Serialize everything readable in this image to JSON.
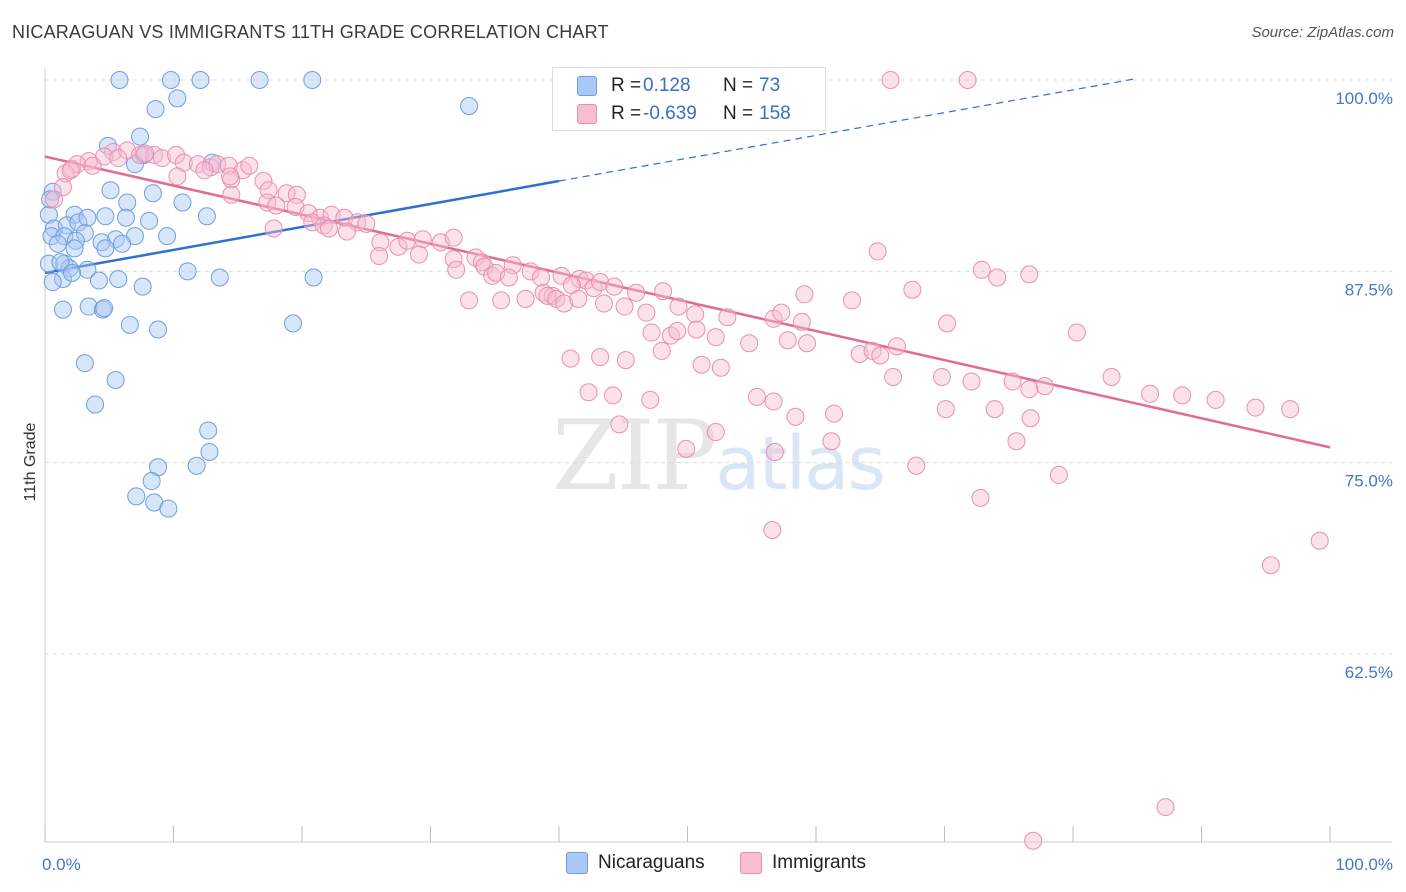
{
  "title": "NICARAGUAN VS IMMIGRANTS 11TH GRADE CORRELATION CHART",
  "source": "Source: ZipAtlas.com",
  "watermark": {
    "zip": "ZIP",
    "atlas": "atlas"
  },
  "legend": {
    "rows": [
      {
        "r_label": "R =",
        "r_value": "0.128",
        "n_label": "N =",
        "n_value": "73",
        "color": "#a9c8f5",
        "border": "#6f9ee0"
      },
      {
        "r_label": "R =",
        "r_value": "-0.639",
        "n_label": "N =",
        "n_value": "158",
        "color": "#f7bdd1",
        "border": "#ea8fb0"
      }
    ]
  },
  "bottom_legend": [
    {
      "label": "Nicaraguans",
      "color": "#a9c8f5",
      "border": "#6f9ee0"
    },
    {
      "label": "Immigrants",
      "color": "#f7bdd1",
      "border": "#ea8fb0"
    }
  ],
  "chart_data": {
    "type": "scatter",
    "title": "NICARAGUAN VS IMMIGRANTS 11TH GRADE CORRELATION CHART",
    "xlabel": "",
    "ylabel": "11th Grade",
    "xlim": [
      0,
      100
    ],
    "ylim": [
      50,
      101
    ],
    "x_tick_labels": [
      "0.0%",
      "100.0%"
    ],
    "y_ticks": [
      {
        "value": 100,
        "label": "100.0%"
      },
      {
        "value": 87.5,
        "label": "87.5%"
      },
      {
        "value": 75,
        "label": "75.0%"
      },
      {
        "value": 62.5,
        "label": "62.5%"
      }
    ],
    "series": [
      {
        "name": "Nicaraguans",
        "color": "#a9c8f5",
        "stroke": "#6f9ee0",
        "trend": {
          "x0": 0,
          "y0": 87.4,
          "x1": 40,
          "y1": 93.4,
          "dash_to_x": 85,
          "dash_to_y": 100.1,
          "color": "#2f6fd0"
        },
        "points": [
          [
            5.8,
            100
          ],
          [
            9.8,
            100
          ],
          [
            12.1,
            100
          ],
          [
            16.7,
            100
          ],
          [
            20.8,
            100
          ],
          [
            33,
            98.3
          ],
          [
            8.6,
            98.1
          ],
          [
            10.3,
            98.8
          ],
          [
            7.4,
            96.3
          ],
          [
            4.9,
            95.7
          ],
          [
            7.7,
            95.1
          ],
          [
            7,
            94.5
          ],
          [
            13,
            94.6
          ],
          [
            0.6,
            92.7
          ],
          [
            5.1,
            92.8
          ],
          [
            8.4,
            92.6
          ],
          [
            2.3,
            91.2
          ],
          [
            10.7,
            92
          ],
          [
            6.4,
            92
          ],
          [
            0.3,
            91.2
          ],
          [
            0.7,
            90.3
          ],
          [
            1.7,
            90.5
          ],
          [
            4.7,
            91.1
          ],
          [
            2.6,
            90.7
          ],
          [
            3.3,
            91
          ],
          [
            6.3,
            91
          ],
          [
            8.1,
            90.8
          ],
          [
            12.6,
            91.1
          ],
          [
            0.5,
            89.8
          ],
          [
            1.5,
            89.8
          ],
          [
            3.1,
            90
          ],
          [
            5.5,
            89.6
          ],
          [
            7,
            89.8
          ],
          [
            9.5,
            89.8
          ],
          [
            1,
            89.3
          ],
          [
            2.4,
            89.5
          ],
          [
            4.4,
            89.4
          ],
          [
            6,
            89.3
          ],
          [
            2.3,
            89
          ],
          [
            4.7,
            89
          ],
          [
            0.3,
            88
          ],
          [
            1.5,
            88
          ],
          [
            1.9,
            87.7
          ],
          [
            3.3,
            87.6
          ],
          [
            11.1,
            87.5
          ],
          [
            13.6,
            87.1
          ],
          [
            20.9,
            87.1
          ],
          [
            1.4,
            87
          ],
          [
            5.7,
            87
          ],
          [
            7.6,
            86.5
          ],
          [
            1.4,
            85
          ],
          [
            3.4,
            85.2
          ],
          [
            4.5,
            85
          ],
          [
            4.6,
            85.1
          ],
          [
            6.6,
            84
          ],
          [
            8.8,
            83.7
          ],
          [
            19.3,
            84.1
          ],
          [
            3.1,
            81.5
          ],
          [
            5.5,
            80.4
          ],
          [
            3.9,
            78.8
          ],
          [
            12.7,
            77.1
          ],
          [
            12.8,
            75.7
          ],
          [
            8.8,
            74.7
          ],
          [
            11.8,
            74.8
          ],
          [
            8.3,
            73.8
          ],
          [
            7.1,
            72.8
          ],
          [
            8.5,
            72.4
          ],
          [
            9.6,
            72
          ],
          [
            0.4,
            92.2
          ],
          [
            1.2,
            88.1
          ],
          [
            2.1,
            87.4
          ],
          [
            4.2,
            86.9
          ],
          [
            0.6,
            86.8
          ]
        ]
      },
      {
        "name": "Immigrants",
        "color": "#f7bdd1",
        "stroke": "#ea8fb0",
        "trend": {
          "x0": 0,
          "y0": 95,
          "x1": 100,
          "y1": 76,
          "color": "#e26b94"
        },
        "points": [
          [
            65.8,
            100
          ],
          [
            71.8,
            100
          ],
          [
            5.3,
            95.3
          ],
          [
            6.4,
            95.4
          ],
          [
            7.4,
            95.1
          ],
          [
            8.5,
            95.1
          ],
          [
            9.1,
            94.9
          ],
          [
            4.6,
            95
          ],
          [
            3.4,
            94.7
          ],
          [
            2.1,
            94.2
          ],
          [
            2.5,
            94.5
          ],
          [
            3.7,
            94.4
          ],
          [
            5.7,
            94.9
          ],
          [
            7.8,
            95.2
          ],
          [
            10.2,
            95.1
          ],
          [
            10.8,
            94.6
          ],
          [
            11.9,
            94.5
          ],
          [
            12.9,
            94.3
          ],
          [
            13.4,
            94.5
          ],
          [
            14.3,
            94.4
          ],
          [
            15.4,
            94.1
          ],
          [
            15.9,
            94.4
          ],
          [
            1.6,
            93.9
          ],
          [
            2,
            94.1
          ],
          [
            12.4,
            94.1
          ],
          [
            10.3,
            93.7
          ],
          [
            14.5,
            93.5
          ],
          [
            17,
            93.4
          ],
          [
            1.4,
            93
          ],
          [
            17.4,
            92.8
          ],
          [
            14.5,
            92.5
          ],
          [
            18.8,
            92.6
          ],
          [
            19.6,
            92.5
          ],
          [
            0.7,
            92.2
          ],
          [
            17.3,
            92
          ],
          [
            18,
            91.8
          ],
          [
            19.5,
            91.7
          ],
          [
            20.5,
            91.3
          ],
          [
            21.4,
            91
          ],
          [
            22.3,
            91.2
          ],
          [
            23.3,
            91
          ],
          [
            24.3,
            90.7
          ],
          [
            25,
            90.6
          ],
          [
            20.8,
            90.7
          ],
          [
            21.7,
            90.5
          ],
          [
            17.8,
            90.3
          ],
          [
            23.5,
            90.1
          ],
          [
            22.1,
            90.3
          ],
          [
            14.4,
            93.7
          ],
          [
            26.1,
            89.4
          ],
          [
            27.5,
            89.1
          ],
          [
            28.2,
            89.5
          ],
          [
            29.4,
            89.6
          ],
          [
            30.8,
            89.4
          ],
          [
            31.8,
            89.7
          ],
          [
            29.1,
            88.6
          ],
          [
            33.5,
            88.4
          ],
          [
            34,
            88.1
          ],
          [
            31.8,
            88.3
          ],
          [
            26,
            88.5
          ],
          [
            32,
            87.6
          ],
          [
            34.2,
            87.8
          ],
          [
            34.8,
            87.2
          ],
          [
            36.4,
            87.9
          ],
          [
            35.1,
            87.4
          ],
          [
            37.8,
            87.5
          ],
          [
            36.1,
            87.1
          ],
          [
            38.6,
            87.1
          ],
          [
            40.2,
            87.2
          ],
          [
            41.6,
            87
          ],
          [
            42.1,
            86.9
          ],
          [
            41,
            86.6
          ],
          [
            42.7,
            86.4
          ],
          [
            43.2,
            86.8
          ],
          [
            44.3,
            86.5
          ],
          [
            46,
            86.1
          ],
          [
            48.1,
            86.2
          ],
          [
            38.8,
            86.1
          ],
          [
            39.5,
            85.9
          ],
          [
            33,
            85.6
          ],
          [
            35.5,
            85.6
          ],
          [
            37.4,
            85.7
          ],
          [
            39.1,
            85.9
          ],
          [
            39.8,
            85.7
          ],
          [
            40.4,
            85.4
          ],
          [
            41.5,
            85.7
          ],
          [
            43.5,
            85.4
          ],
          [
            45.1,
            85.2
          ],
          [
            46.8,
            84.8
          ],
          [
            49.3,
            85.2
          ],
          [
            50.6,
            84.7
          ],
          [
            53.1,
            84.5
          ],
          [
            56.7,
            84.4
          ],
          [
            57.3,
            84.8
          ],
          [
            58.9,
            84.2
          ],
          [
            50.7,
            83.7
          ],
          [
            47.2,
            83.5
          ],
          [
            48.7,
            83.3
          ],
          [
            49.2,
            83.6
          ],
          [
            52.2,
            83.2
          ],
          [
            54.8,
            82.8
          ],
          [
            57.8,
            83
          ],
          [
            59.3,
            82.8
          ],
          [
            48,
            82.3
          ],
          [
            63.4,
            82.1
          ],
          [
            64.4,
            82.3
          ],
          [
            65,
            82
          ],
          [
            40.9,
            81.8
          ],
          [
            43.2,
            81.9
          ],
          [
            45.2,
            81.7
          ],
          [
            51.1,
            81.4
          ],
          [
            52.6,
            81.2
          ],
          [
            69.8,
            80.6
          ],
          [
            72.1,
            80.3
          ],
          [
            75.3,
            80.3
          ],
          [
            77.8,
            80
          ],
          [
            76.6,
            79.8
          ],
          [
            42.3,
            79.6
          ],
          [
            44.2,
            79.4
          ],
          [
            47.1,
            79.1
          ],
          [
            55.4,
            79.3
          ],
          [
            56.7,
            79
          ],
          [
            73.9,
            78.5
          ],
          [
            70.1,
            78.5
          ],
          [
            61.4,
            78.2
          ],
          [
            58.4,
            78
          ],
          [
            76.7,
            77.9
          ],
          [
            44.7,
            77.5
          ],
          [
            52.2,
            77
          ],
          [
            61.2,
            76.4
          ],
          [
            75.6,
            76.4
          ],
          [
            49.9,
            75.9
          ],
          [
            56.8,
            75.7
          ],
          [
            67.8,
            74.8
          ],
          [
            78.9,
            74.2
          ],
          [
            72.8,
            72.7
          ],
          [
            56.6,
            70.6
          ],
          [
            95.4,
            68.3
          ],
          [
            99.2,
            69.9
          ],
          [
            87.2,
            52.5
          ],
          [
            76.9,
            50.3
          ],
          [
            83,
            80.6
          ],
          [
            86,
            79.5
          ],
          [
            88.5,
            79.4
          ],
          [
            91.1,
            79.1
          ],
          [
            94.2,
            78.6
          ],
          [
            96.9,
            78.5
          ],
          [
            70.2,
            84.1
          ],
          [
            80.3,
            83.5
          ],
          [
            66.3,
            82.6
          ],
          [
            66,
            80.6
          ],
          [
            59.1,
            86
          ],
          [
            62.8,
            85.6
          ],
          [
            67.5,
            86.3
          ],
          [
            64.8,
            88.8
          ],
          [
            72.9,
            87.6
          ],
          [
            74.1,
            87.1
          ],
          [
            76.6,
            87.3
          ]
        ]
      }
    ]
  }
}
